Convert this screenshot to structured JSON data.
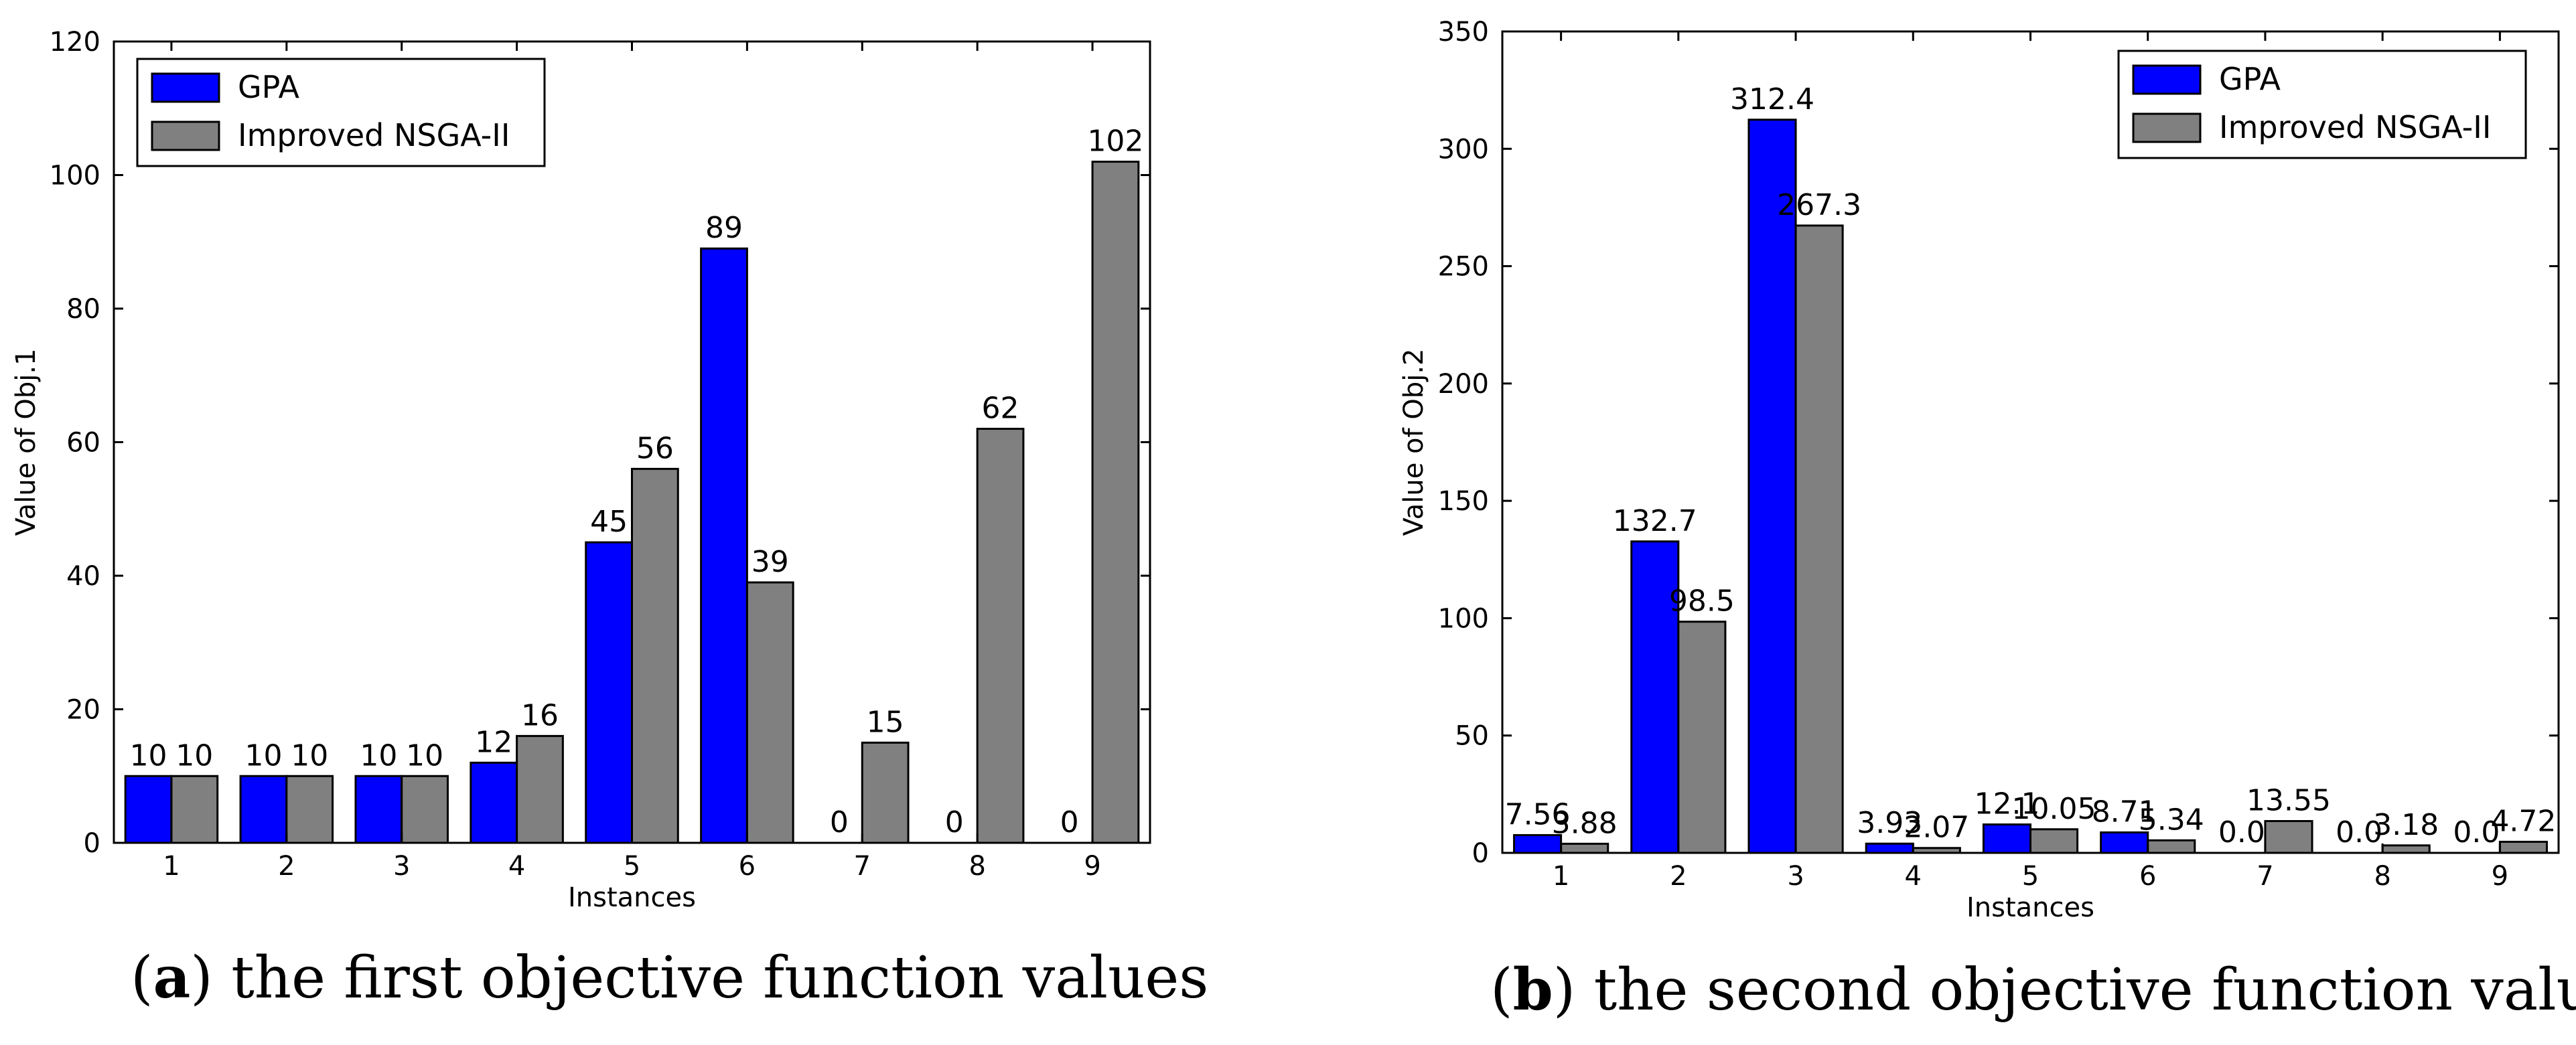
{
  "chart_data": [
    {
      "type": "bar",
      "title": "",
      "xlabel": "Instances",
      "ylabel": "Value of Obj.1",
      "categories": [
        "1",
        "2",
        "3",
        "4",
        "5",
        "6",
        "7",
        "8",
        "9"
      ],
      "ylim": [
        0,
        120
      ],
      "yticks": [
        0,
        20,
        40,
        60,
        80,
        100,
        120
      ],
      "legend_position": "top-left",
      "series": [
        {
          "name": "GPA",
          "color": "#0000ff",
          "values": [
            10,
            10,
            10,
            12,
            45,
            89,
            0,
            0,
            0
          ],
          "labels": [
            "10",
            "10",
            "10",
            "12",
            "45",
            "89",
            "0",
            "0",
            "0"
          ]
        },
        {
          "name": "Improved NSGA-II",
          "color": "#808080",
          "values": [
            10,
            10,
            10,
            16,
            56,
            39,
            15,
            62,
            102
          ],
          "labels": [
            "10",
            "10",
            "10",
            "16",
            "56",
            "39",
            "15",
            "62",
            "102"
          ]
        }
      ],
      "caption_letter": "a",
      "caption_text": "the first objective function values"
    },
    {
      "type": "bar",
      "title": "",
      "xlabel": "Instances",
      "ylabel": "Value of Obj.2",
      "categories": [
        "1",
        "2",
        "3",
        "4",
        "5",
        "6",
        "7",
        "8",
        "9"
      ],
      "ylim": [
        0,
        350
      ],
      "yticks": [
        0,
        50,
        100,
        150,
        200,
        250,
        300,
        350
      ],
      "legend_position": "top-right",
      "series": [
        {
          "name": "GPA",
          "color": "#0000ff",
          "values": [
            7.56,
            132.7,
            312.4,
            3.93,
            12.1,
            8.71,
            0.0,
            0.0,
            0.0
          ],
          "labels": [
            "7.56",
            "132.7",
            "312.4",
            "3.93",
            "12.1",
            "8.71",
            "0.0",
            "0.0",
            "0.0"
          ]
        },
        {
          "name": "Improved NSGA-II",
          "color": "#808080",
          "values": [
            3.88,
            98.5,
            267.3,
            2.07,
            10.05,
            5.34,
            13.55,
            3.18,
            4.72
          ],
          "labels": [
            "3.88",
            "98.5",
            "267.3",
            "2.07",
            "10.05",
            "5.34",
            "13.55",
            "3.18",
            "4.72"
          ]
        }
      ],
      "caption_letter": "b",
      "caption_text": "the second objective function values"
    }
  ]
}
